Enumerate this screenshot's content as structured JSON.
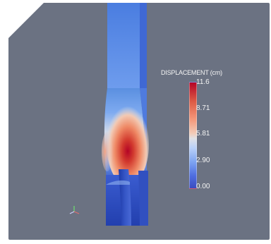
{
  "legend": {
    "title": "DISPLACEMENT (cm)",
    "ticks": [
      "11.6",
      "8.71",
      "5.81",
      "2.90",
      "0.00"
    ],
    "colormap": [
      "#3b4cc0",
      "#7ea4f1",
      "#dfe1e6",
      "#f4987a",
      "#b40426"
    ]
  },
  "colors": {
    "background": "#6b7282",
    "low": "#3b4cc0",
    "high": "#b40426"
  }
}
